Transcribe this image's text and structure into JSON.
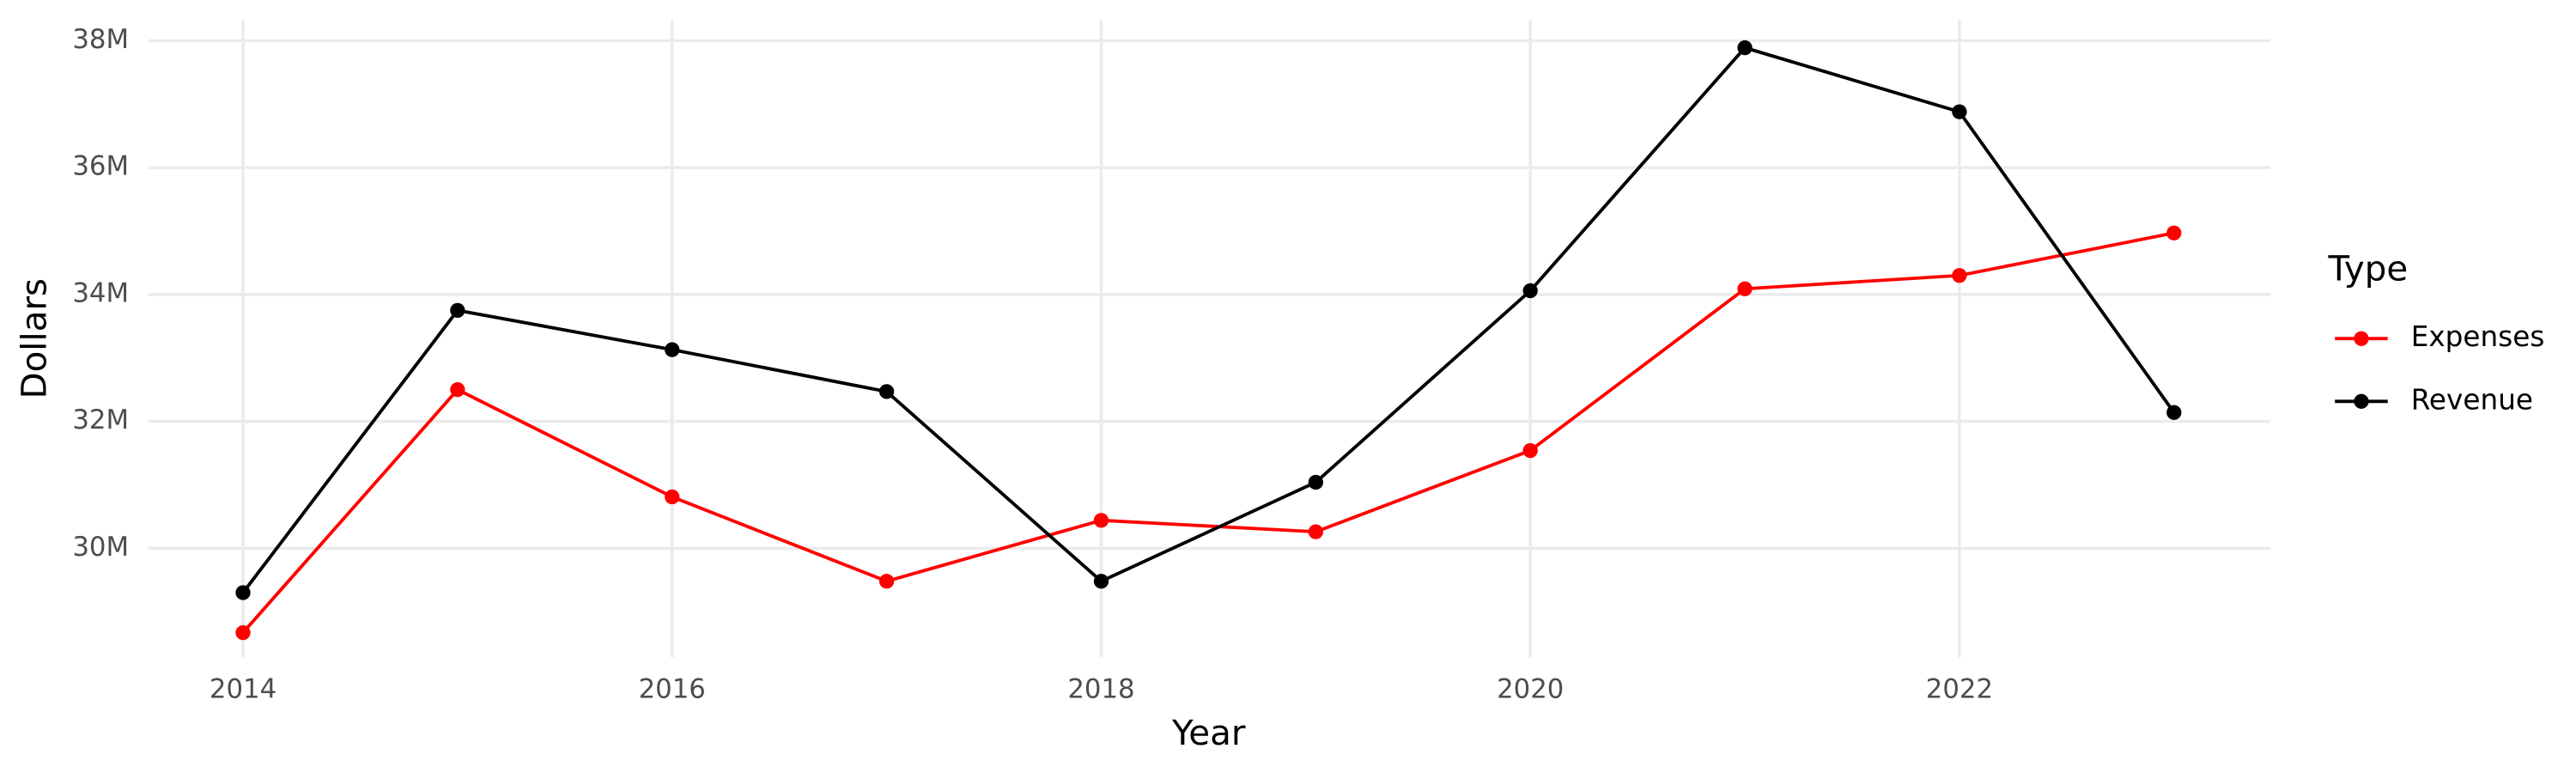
{
  "chart_data": {
    "type": "line",
    "x_label": "Year",
    "y_label": "Dollars",
    "legend_title": "Type",
    "x": [
      2014,
      2015,
      2016,
      2017,
      2018,
      2019,
      2020,
      2021,
      2022,
      2023
    ],
    "series": [
      {
        "name": "Expenses",
        "color": "#ff0000",
        "values": [
          28670000,
          32500000,
          30810000,
          29480000,
          30440000,
          30260000,
          31540000,
          34090000,
          34300000,
          34970000
        ]
      },
      {
        "name": "Revenue",
        "color": "#000000",
        "values": [
          29300000,
          33750000,
          33130000,
          32470000,
          29480000,
          31040000,
          34060000,
          37890000,
          36880000,
          32140000
        ]
      }
    ],
    "xlim": [
      2013.56,
      2023.45
    ],
    "xticks": [
      2014,
      2016,
      2018,
      2020,
      2022
    ],
    "ylim": [
      28280000,
      38330000
    ],
    "yticks": [
      {
        "value": 30000000,
        "label": "30M"
      },
      {
        "value": 32000000,
        "label": "32M"
      },
      {
        "value": 34000000,
        "label": "34M"
      },
      {
        "value": 36000000,
        "label": "36M"
      },
      {
        "value": 38000000,
        "label": "38M"
      }
    ],
    "grid": true,
    "legend": "right"
  }
}
